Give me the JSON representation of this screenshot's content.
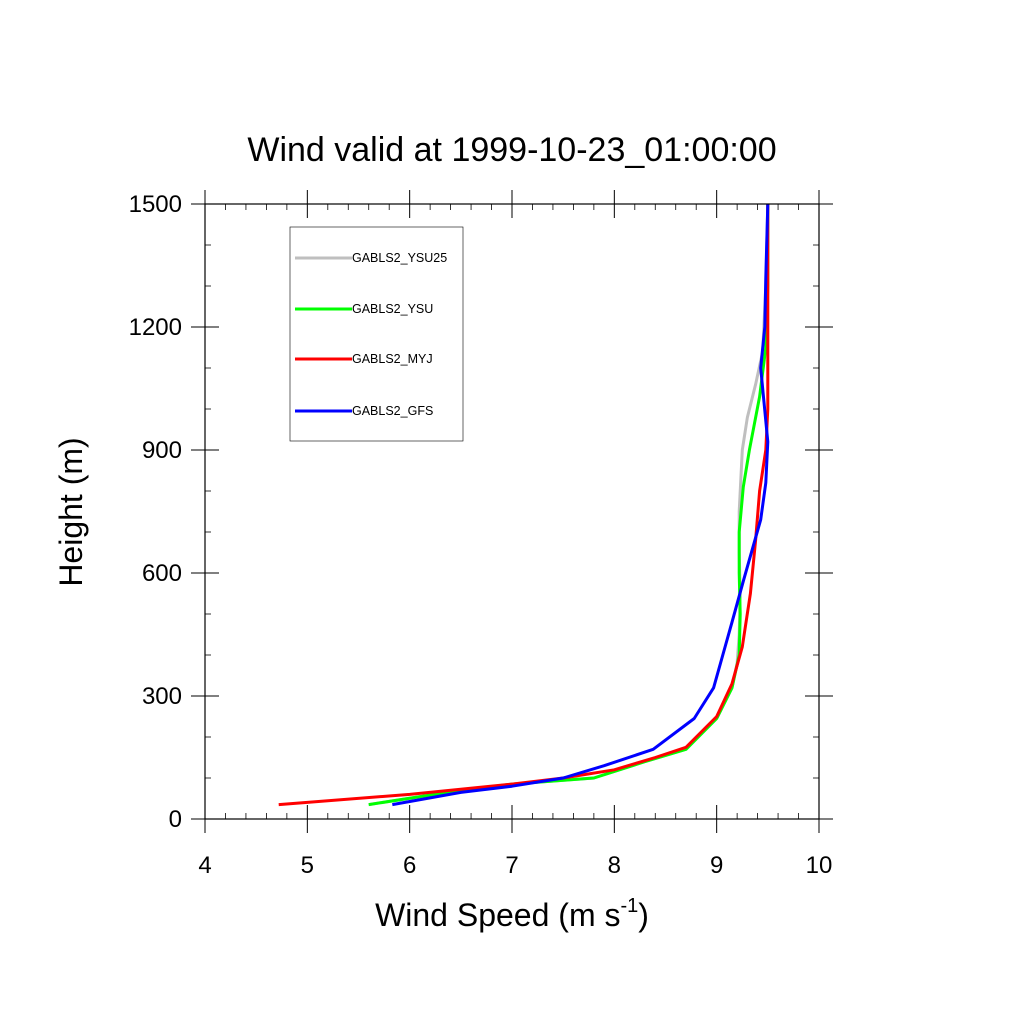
{
  "chart_data": {
    "type": "line",
    "title": "Wind valid at 1999-10-23_01:00:00",
    "xlabel": "Wind Speed (m s",
    "xlabel_sup": "-1",
    "xlabel_end": ")",
    "ylabel": "Height (m)",
    "xlim": [
      4,
      10
    ],
    "ylim": [
      0,
      1500
    ],
    "x_ticks": [
      4,
      5,
      6,
      7,
      8,
      9,
      10
    ],
    "y_ticks": [
      0,
      300,
      600,
      900,
      1200,
      1500
    ],
    "legend_position": "top-left",
    "grid": false,
    "series": [
      {
        "name": "GABLS2_YSU25",
        "color": "#bfbfbf",
        "points": [
          [
            5.6,
            35
          ],
          [
            6.5,
            70
          ],
          [
            7.0,
            85
          ],
          [
            7.8,
            100
          ],
          [
            8.3,
            140
          ],
          [
            8.7,
            170
          ],
          [
            9.0,
            245
          ],
          [
            9.15,
            320
          ],
          [
            9.2,
            380
          ],
          [
            9.22,
            450
          ],
          [
            9.23,
            550
          ],
          [
            9.22,
            650
          ],
          [
            9.22,
            750
          ],
          [
            9.25,
            900
          ],
          [
            9.3,
            980
          ],
          [
            9.38,
            1060
          ],
          [
            9.45,
            1140
          ],
          [
            9.48,
            1300
          ],
          [
            9.5,
            1500
          ]
        ]
      },
      {
        "name": "GABLS2_YSU",
        "color": "#00ff00",
        "points": [
          [
            5.6,
            35
          ],
          [
            6.5,
            70
          ],
          [
            7.0,
            85
          ],
          [
            7.8,
            100
          ],
          [
            8.3,
            140
          ],
          [
            8.7,
            170
          ],
          [
            9.0,
            245
          ],
          [
            9.15,
            320
          ],
          [
            9.22,
            400
          ],
          [
            9.23,
            500
          ],
          [
            9.22,
            600
          ],
          [
            9.22,
            700
          ],
          [
            9.26,
            810
          ],
          [
            9.32,
            900
          ],
          [
            9.42,
            1030
          ],
          [
            9.48,
            1150
          ],
          [
            9.5,
            1300
          ],
          [
            9.5,
            1500
          ]
        ]
      },
      {
        "name": "GABLS2_MYJ",
        "color": "#ff0000",
        "points": [
          [
            4.72,
            35
          ],
          [
            6.0,
            60
          ],
          [
            7.0,
            85
          ],
          [
            7.5,
            100
          ],
          [
            8.0,
            120
          ],
          [
            8.4,
            150
          ],
          [
            8.7,
            175
          ],
          [
            9.0,
            250
          ],
          [
            9.15,
            330
          ],
          [
            9.25,
            420
          ],
          [
            9.33,
            550
          ],
          [
            9.38,
            680
          ],
          [
            9.42,
            800
          ],
          [
            9.48,
            900
          ],
          [
            9.5,
            1000
          ],
          [
            9.5,
            1500
          ]
        ]
      },
      {
        "name": "GABLS2_GFS",
        "color": "#0000ff",
        "points": [
          [
            5.83,
            35
          ],
          [
            6.5,
            65
          ],
          [
            7.0,
            80
          ],
          [
            7.5,
            100
          ],
          [
            7.9,
            130
          ],
          [
            8.38,
            170
          ],
          [
            8.78,
            245
          ],
          [
            8.97,
            320
          ],
          [
            9.06,
            400
          ],
          [
            9.15,
            480
          ],
          [
            9.26,
            580
          ],
          [
            9.43,
            730
          ],
          [
            9.48,
            820
          ],
          [
            9.5,
            920
          ],
          [
            9.43,
            1100
          ],
          [
            9.47,
            1200
          ],
          [
            9.48,
            1320
          ],
          [
            9.5,
            1500
          ]
        ]
      }
    ]
  }
}
